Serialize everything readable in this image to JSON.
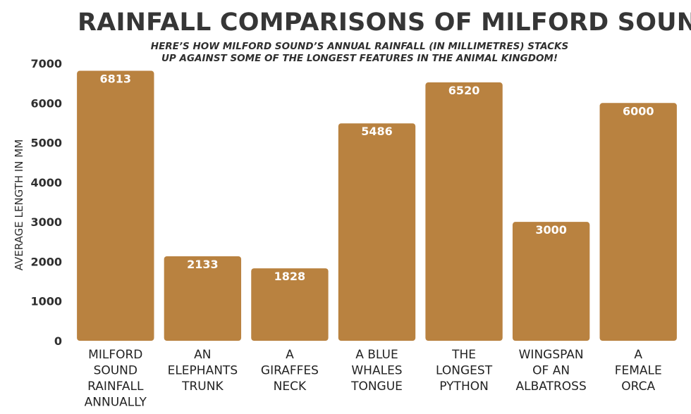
{
  "chart_data": {
    "type": "bar",
    "title": "RAINFALL COMPARISONS OF MILFORD SOUND",
    "subtitle": [
      "HERE’S HOW MILFORD SOUND’S ANNUAL RAINFALL (IN MILLIMETRES) STACKS",
      "UP AGAINST SOME OF THE LONGEST FEATURES IN THE ANIMAL KINGDOM!"
    ],
    "xlabel": "",
    "ylabel": "AVERAGE LENGTH IN MM",
    "ylim": [
      0,
      7000
    ],
    "yticks": [
      0,
      1000,
      2000,
      3000,
      4000,
      5000,
      6000,
      7000
    ],
    "grid": false,
    "categories": [
      [
        "MILFORD",
        "SOUND",
        "RAINFALL",
        "ANNUALLY"
      ],
      [
        "AN",
        "ELEPHANTS",
        "TRUNK"
      ],
      [
        "A",
        "GIRAFFES",
        "NECK"
      ],
      [
        "A BLUE",
        "WHALES",
        "TONGUE"
      ],
      [
        "THE",
        "LONGEST",
        "PYTHON"
      ],
      [
        "WINGSPAN",
        "OF AN",
        "ALBATROSS"
      ],
      [
        "A",
        "FEMALE",
        "ORCA"
      ]
    ],
    "values": [
      6813,
      2133,
      1828,
      5486,
      6520,
      3000,
      6000
    ],
    "data_labels": [
      "6813",
      "2133",
      "1828",
      "5486",
      "6520",
      "3000",
      "6000"
    ],
    "colors": {
      "bar": "#b98240",
      "bar_label": "#ffffff",
      "text": "#2f2f2f"
    }
  }
}
